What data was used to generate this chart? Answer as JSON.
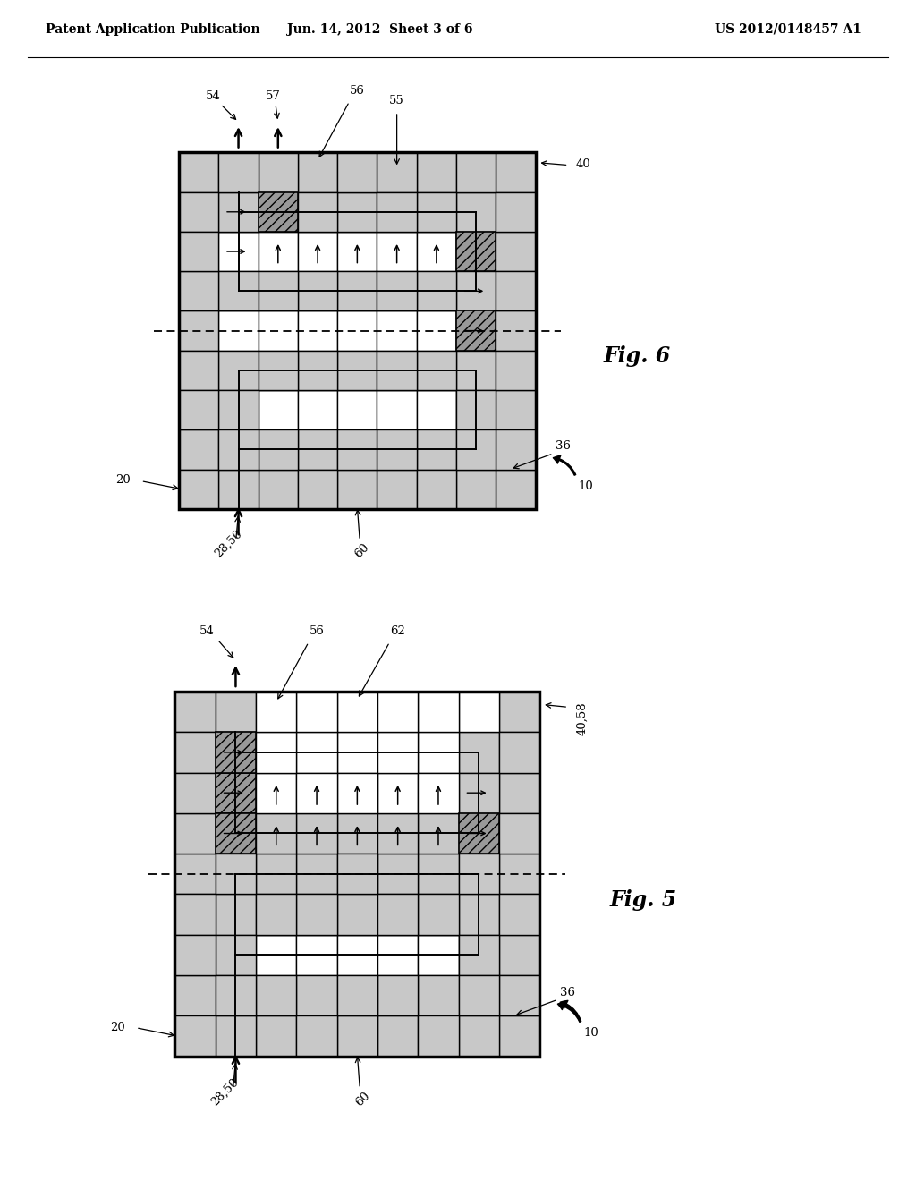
{
  "bg_color": "#ffffff",
  "header_left": "Patent Application Publication",
  "header_center": "Jun. 14, 2012  Sheet 3 of 6",
  "header_right": "US 2012/0148457 A1",
  "light_gray": "#c8c8c8",
  "med_gray": "#999999",
  "rows": 9,
  "cols": 9,
  "cell": 0.78,
  "fig6_label": "Fig. 6",
  "fig5_label": "Fig. 5"
}
